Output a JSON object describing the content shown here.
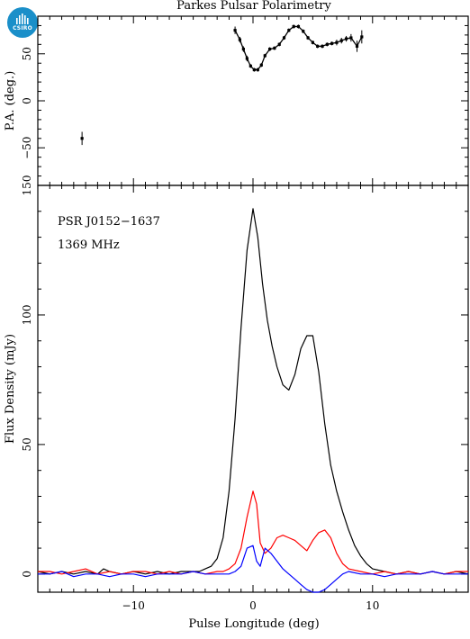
{
  "logo": {
    "text": "CSIRO",
    "color": "#1a8fc9"
  },
  "chart_data": [
    {
      "type": "scatter",
      "panel": "position-angle",
      "title": "Parkes Pulsar Polarimetry",
      "xlabel": "",
      "ylabel": "P.A. (deg.)",
      "xlim": [
        -18,
        18
      ],
      "ylim": [
        -90,
        90
      ],
      "y_ticks": [
        -50,
        0,
        50
      ],
      "y_tick_labels": [
        "−50",
        "0",
        "50"
      ],
      "series": [
        {
          "x": [
            -14.3,
            -1.5,
            -1.1,
            -0.8,
            -0.5,
            -0.2,
            0.1,
            0.4,
            0.7,
            1.0,
            1.4,
            1.8,
            2.2,
            2.6,
            3.0,
            3.4,
            3.8,
            4.2,
            4.6,
            5.0,
            5.4,
            5.8,
            6.2,
            6.6,
            7.0,
            7.4,
            7.8,
            8.2,
            8.7,
            9.1
          ],
          "y": [
            -40,
            75,
            65,
            55,
            45,
            37,
            33,
            33,
            38,
            48,
            55,
            56,
            60,
            67,
            75,
            79,
            79,
            74,
            67,
            62,
            58,
            58,
            60,
            61,
            62,
            64,
            66,
            67,
            58,
            68
          ],
          "err": [
            7,
            4,
            3,
            3,
            3,
            2,
            2,
            2,
            2,
            2,
            2,
            2,
            2,
            2,
            2,
            2,
            2,
            2,
            2,
            2,
            2,
            2,
            2,
            2,
            3,
            3,
            3,
            4,
            6,
            7
          ]
        }
      ]
    },
    {
      "type": "line",
      "panel": "flux-profile",
      "title": "",
      "xlabel": "Pulse Longitude (deg)",
      "ylabel": "Flux Density (mJy)",
      "xlim": [
        -18,
        18
      ],
      "ylim": [
        -7,
        150
      ],
      "x_ticks": [
        -10,
        0,
        10
      ],
      "x_tick_labels": [
        "−10",
        "0",
        "10"
      ],
      "y_ticks": [
        0,
        50,
        100,
        150
      ],
      "y_tick_labels": [
        "0",
        "50",
        "100",
        "150"
      ],
      "annotations": [
        "PSR J0152−1637",
        "1369 MHz"
      ],
      "series": [
        {
          "color": "#000000",
          "x": [
            -18,
            -17,
            -16,
            -15,
            -14,
            -13,
            -12.5,
            -12,
            -11,
            -10,
            -9,
            -8,
            -7,
            -6,
            -5,
            -4.5,
            -4,
            -3.5,
            -3,
            -2.5,
            -2,
            -1.5,
            -1,
            -0.5,
            0,
            0.4,
            0.8,
            1.2,
            1.6,
            2,
            2.5,
            3,
            3.5,
            4,
            4.5,
            5,
            5.5,
            6,
            6.5,
            7,
            7.5,
            8,
            8.5,
            9,
            9.5,
            10,
            11,
            12,
            13,
            14,
            15,
            16,
            17,
            18
          ],
          "y": [
            1,
            0,
            1,
            0,
            1,
            0,
            2,
            1,
            0,
            1,
            0,
            1,
            0,
            1,
            1,
            1,
            2,
            3,
            6,
            14,
            32,
            60,
            95,
            125,
            141,
            130,
            112,
            98,
            88,
            80,
            73,
            71,
            77,
            87,
            92,
            92,
            78,
            58,
            42,
            32,
            24,
            17,
            11,
            7,
            4,
            2,
            1,
            0,
            1,
            0,
            1,
            0,
            1,
            0
          ]
        },
        {
          "color": "#ff0000",
          "x": [
            -18,
            -17,
            -16,
            -15,
            -14,
            -13,
            -12,
            -11,
            -10,
            -9,
            -8,
            -7,
            -6,
            -5,
            -4,
            -3,
            -2.5,
            -2,
            -1.5,
            -1,
            -0.5,
            0,
            0.3,
            0.6,
            1,
            1.5,
            2,
            2.5,
            3,
            3.5,
            4,
            4.5,
            5,
            5.5,
            6,
            6.5,
            7,
            7.5,
            8,
            9,
            10,
            11,
            12,
            13,
            14,
            15,
            16,
            17,
            18
          ],
          "y": [
            1,
            1,
            0,
            1,
            2,
            0,
            1,
            0,
            1,
            1,
            0,
            1,
            0,
            1,
            0,
            1,
            1,
            2,
            4,
            10,
            22,
            32,
            27,
            12,
            8,
            10,
            14,
            15,
            14,
            13,
            11,
            9,
            13,
            16,
            17,
            14,
            8,
            4,
            2,
            1,
            0,
            1,
            0,
            1,
            0,
            1,
            0,
            1,
            1
          ]
        },
        {
          "color": "#0000ff",
          "x": [
            -18,
            -17,
            -16,
            -15,
            -14,
            -13,
            -12,
            -11,
            -10,
            -9,
            -8,
            -7,
            -6,
            -5,
            -4,
            -3,
            -2,
            -1.5,
            -1,
            -0.5,
            0,
            0.3,
            0.6,
            1,
            1.5,
            2,
            2.5,
            3,
            3.5,
            4,
            4.5,
            5,
            5.5,
            6,
            6.5,
            7,
            7.5,
            8,
            9,
            10,
            11,
            12,
            13,
            14,
            15,
            16,
            17,
            18
          ],
          "y": [
            0,
            0,
            1,
            -1,
            0,
            0,
            -1,
            0,
            0,
            -1,
            0,
            0,
            0,
            1,
            0,
            0,
            0,
            1,
            3,
            10,
            11,
            5,
            3,
            10,
            8,
            5,
            2,
            0,
            -2,
            -4,
            -6,
            -7,
            -7,
            -6,
            -4,
            -2,
            0,
            1,
            0,
            0,
            -1,
            0,
            0,
            0,
            1,
            0,
            0,
            0
          ]
        }
      ]
    }
  ]
}
